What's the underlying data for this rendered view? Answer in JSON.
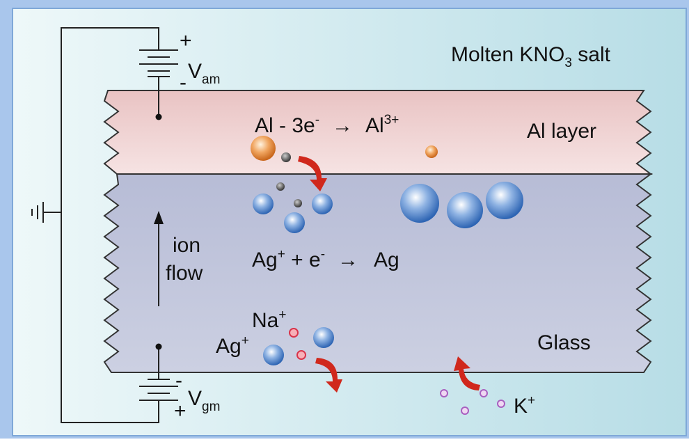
{
  "labels": {
    "salt": [
      "Molten KNO",
      "3",
      " salt"
    ],
    "al_layer": "Al layer",
    "glass": "Glass",
    "vam": [
      "V",
      "am"
    ],
    "vgm": [
      "V",
      "gm"
    ],
    "am_plus": "+",
    "am_minus": "-",
    "gm_minus": "-",
    "gm_plus": "+",
    "ion_flow": [
      "ion",
      "flow"
    ],
    "na": [
      "Na",
      "+"
    ],
    "ag": [
      "Ag",
      "+"
    ],
    "k": [
      "K",
      "+"
    ]
  },
  "reactions": {
    "oxidation": [
      "Al - 3e",
      "-",
      "→",
      "Al",
      "3+"
    ],
    "reduction": [
      "Ag",
      "+",
      " + e",
      "-",
      "→",
      "Ag"
    ]
  }
}
